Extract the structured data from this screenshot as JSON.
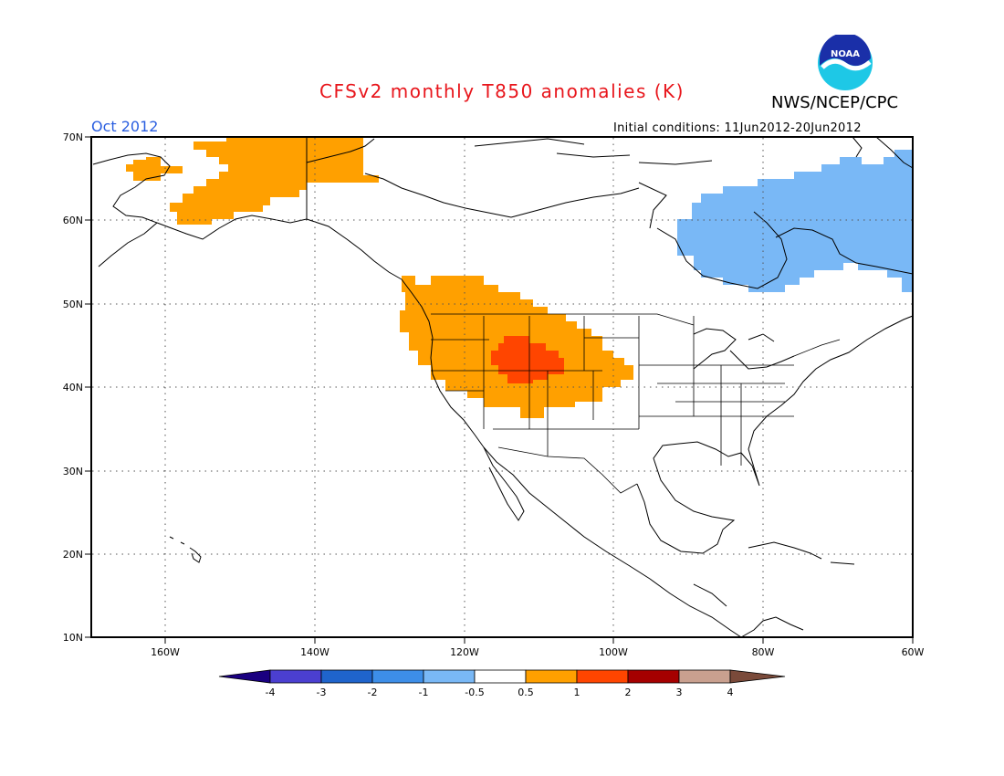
{
  "header": {
    "title": "CFSv2 monthly T850 anomalies (K)",
    "organization": "NWS/NCEP/CPC",
    "month": "Oct 2012",
    "initial_conditions": "Initial conditions: 11Jun2012-20Jun2012",
    "logo_text": "NOAA"
  },
  "map": {
    "projection": "lat-lon",
    "lon_range": [
      -171,
      -60
    ],
    "lat_range": [
      10,
      70
    ],
    "lat_ticks": [
      "70N",
      "60N",
      "50N",
      "40N",
      "30N",
      "20N",
      "10N"
    ],
    "lon_ticks": [
      "160W",
      "140W",
      "120W",
      "100W",
      "80W",
      "60W"
    ],
    "grid": "dotted"
  },
  "anomaly_regions": [
    {
      "region": "Alaska",
      "category": "0.5 to 1"
    },
    {
      "region": "Pacific Northwest and Great Basin",
      "category": "0.5 to 1"
    },
    {
      "region": "Central Rockies",
      "category": "1 to 2"
    },
    {
      "region": "Hudson Bay / Quebec",
      "category": "-1 to -0.5"
    }
  ],
  "colorbar": {
    "labels": [
      "-4",
      "-3",
      "-2",
      "-1",
      "-0.5",
      "0.5",
      "1",
      "2",
      "3",
      "4"
    ],
    "colors": [
      "#1a0080",
      "#4b3fd0",
      "#1f64cc",
      "#3d8ee8",
      "#79b8f6",
      "#ffffff",
      "#ffa000",
      "#ff4500",
      "#a50000",
      "#c9a08f",
      "#7a4a3a"
    ]
  }
}
